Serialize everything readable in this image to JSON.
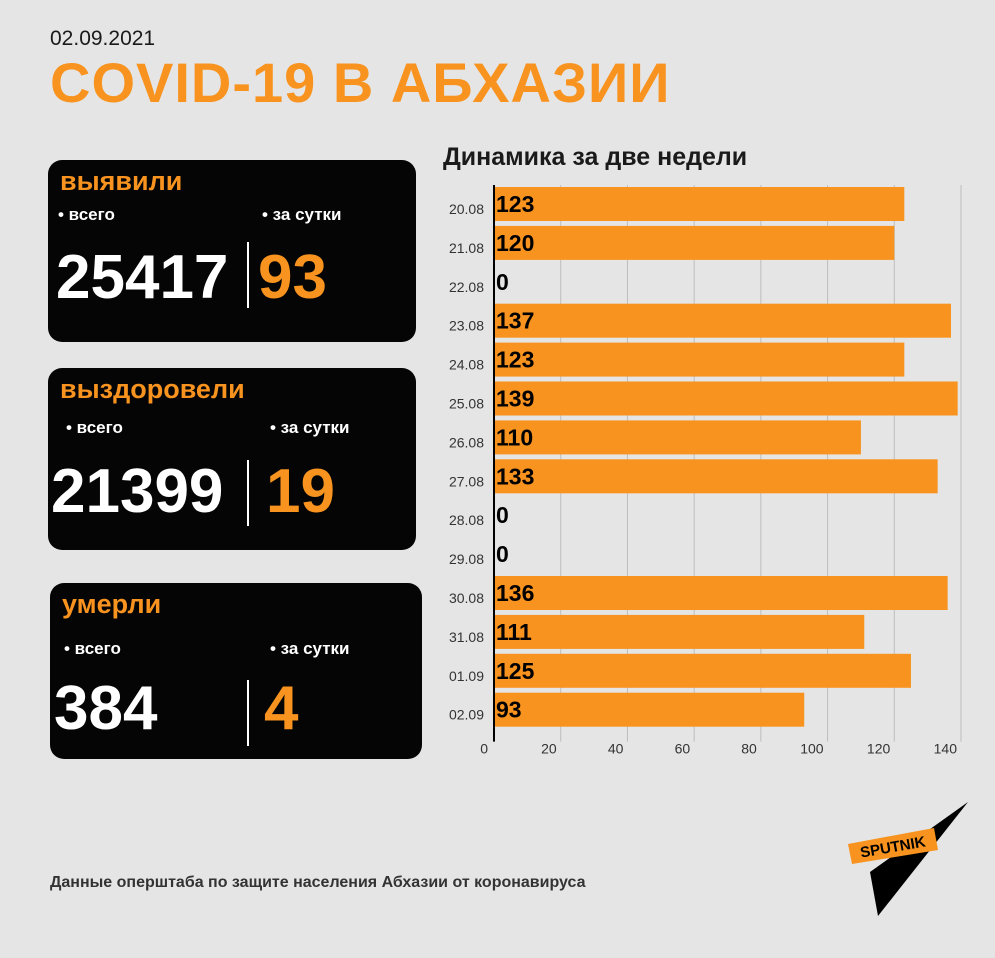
{
  "header": {
    "date": "02.09.2021",
    "title": "COVID-19 В АБХАЗИИ"
  },
  "cards": {
    "detected": {
      "title": "выявили",
      "total_label": "• всего",
      "daily_label": "• за сутки",
      "total": "25417",
      "daily": "93"
    },
    "recovered": {
      "title": "выздоровели",
      "total_label": "• всего",
      "daily_label": "• за сутки",
      "total": "21399",
      "daily": "19"
    },
    "died": {
      "title": "умерли",
      "total_label": "• всего",
      "daily_label": "• за сутки",
      "total": "384",
      "daily": "4"
    }
  },
  "chart_data": {
    "type": "bar",
    "orientation": "horizontal",
    "title": "Динамика за две недели",
    "categories": [
      "20.08",
      "21.08",
      "22.08",
      "23.08",
      "24.08",
      "25.08",
      "26.08",
      "27.08",
      "28.08",
      "29.08",
      "30.08",
      "31.08",
      "01.09",
      "02.09"
    ],
    "values": [
      123,
      120,
      0,
      137,
      123,
      139,
      110,
      133,
      0,
      0,
      136,
      111,
      125,
      93
    ],
    "xlim": [
      0,
      140
    ],
    "xticks": [
      0,
      20,
      40,
      60,
      80,
      100,
      120,
      140
    ],
    "grid": true,
    "bar_color": "#f7931e"
  },
  "footer": {
    "source": "Данные оперштаба по защите населения Абхазии от коронавируса"
  },
  "logo": {
    "text": "SPUTNIK"
  },
  "colors": {
    "accent": "#f7931e",
    "background": "#e5e5e5",
    "card": "#050505"
  }
}
